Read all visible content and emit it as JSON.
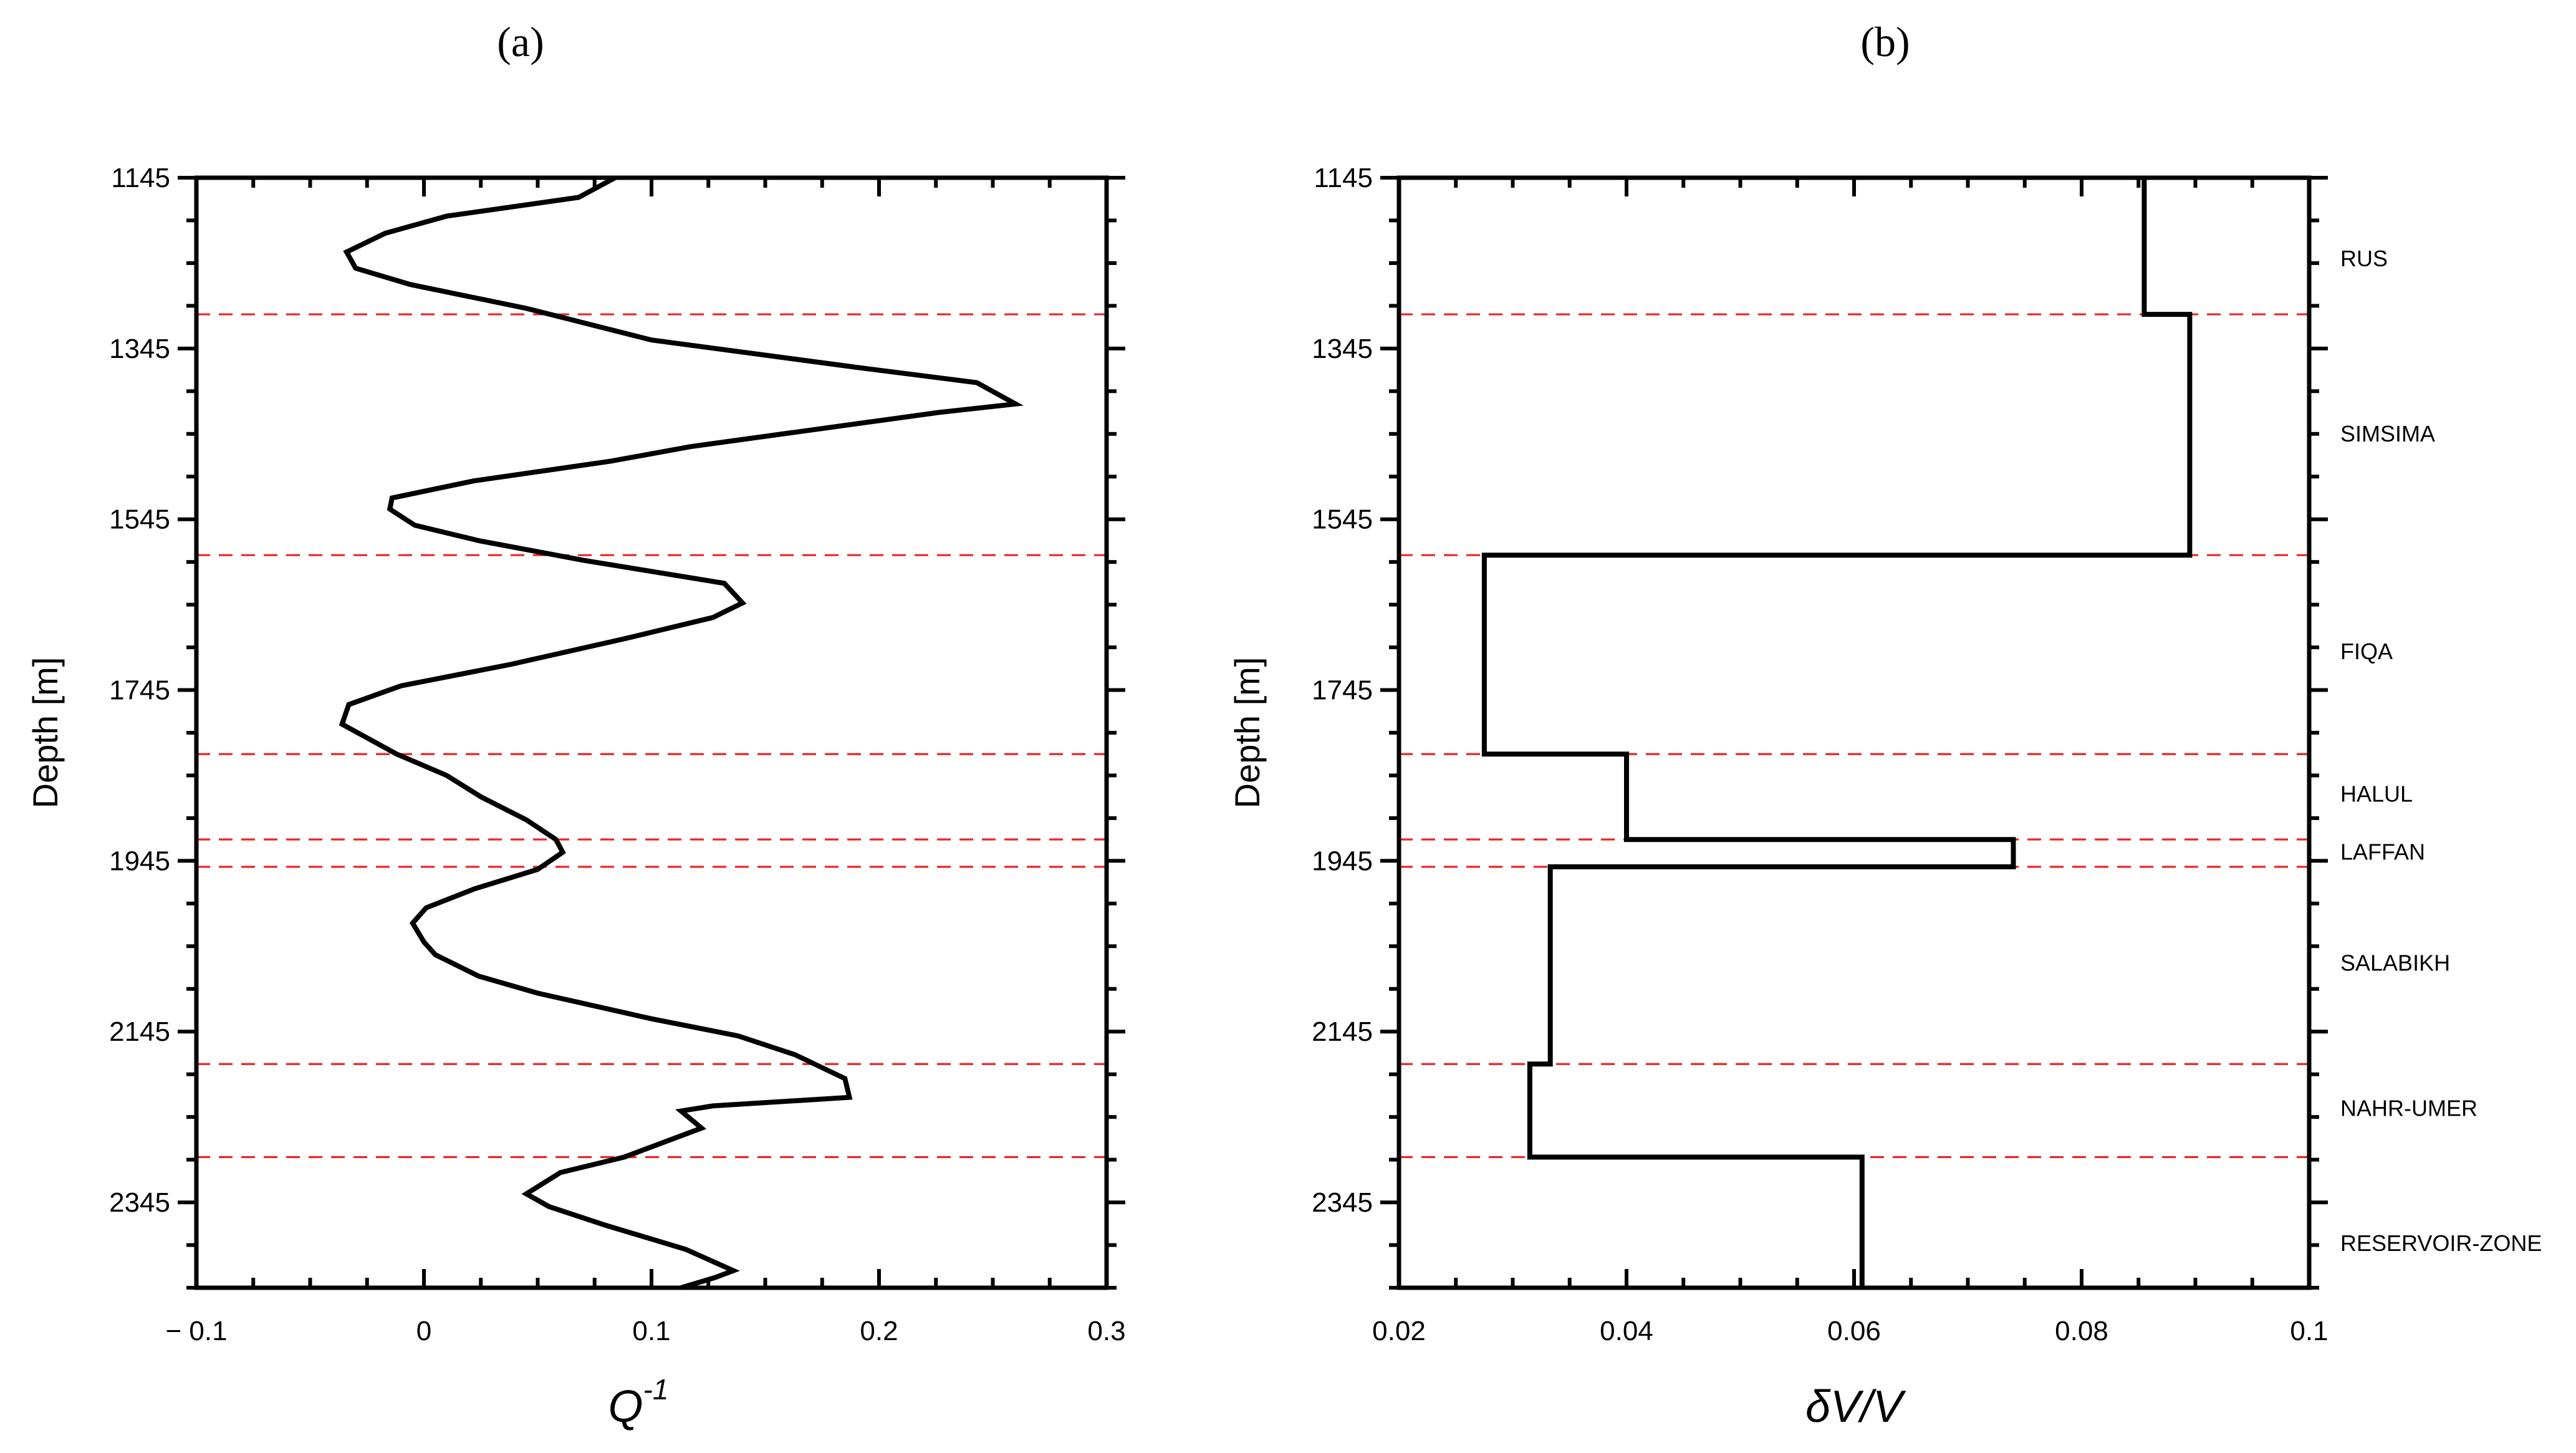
{
  "chart_data": [
    {
      "panel": "(a)",
      "type": "line",
      "xlabel": "Q",
      "xlabel_sup": "-1",
      "ylabel": "Depth [m]",
      "xlim": [
        -0.1,
        0.3
      ],
      "ylim": [
        1145,
        2445
      ],
      "y_inverted": true,
      "xticks": [
        -0.1,
        0,
        0.1,
        0.2,
        0.3
      ],
      "xtick_labels": [
        "− 0.1",
        "0",
        "0.1",
        "0.2",
        "0.3"
      ],
      "yticks": [
        1145,
        1345,
        1545,
        1745,
        1945,
        2145,
        2345
      ],
      "ytick_labels": [
        "1145",
        "1345",
        "1545",
        "1745",
        "1945",
        "2145",
        "2345"
      ],
      "boundaries": [
        1305,
        1587,
        1820,
        1920,
        1952,
        2183,
        2292
      ],
      "series": [
        {
          "name": "Q^-1",
          "points": [
            [
              0.084,
              1145
            ],
            [
              0.068,
              1168
            ],
            [
              0.01,
              1190
            ],
            [
              -0.017,
              1210
            ],
            [
              -0.034,
              1232
            ],
            [
              -0.03,
              1251
            ],
            [
              -0.006,
              1270
            ],
            [
              0.045,
              1298
            ],
            [
              0.1,
              1335
            ],
            [
              0.19,
              1367
            ],
            [
              0.243,
              1385
            ],
            [
              0.26,
              1410
            ],
            [
              0.226,
              1420
            ],
            [
              0.117,
              1460
            ],
            [
              0.082,
              1477
            ],
            [
              0.022,
              1500
            ],
            [
              -0.014,
              1520
            ],
            [
              -0.015,
              1533
            ],
            [
              -0.004,
              1552
            ],
            [
              0.024,
              1570
            ],
            [
              0.07,
              1593
            ],
            [
              0.132,
              1620
            ],
            [
              0.14,
              1643
            ],
            [
              0.127,
              1660
            ],
            [
              0.088,
              1685
            ],
            [
              0.038,
              1715
            ],
            [
              -0.01,
              1740
            ],
            [
              -0.033,
              1762
            ],
            [
              -0.036,
              1785
            ],
            [
              -0.012,
              1820
            ],
            [
              0.01,
              1845
            ],
            [
              0.025,
              1870
            ],
            [
              0.045,
              1897
            ],
            [
              0.058,
              1920
            ],
            [
              0.061,
              1935
            ],
            [
              0.05,
              1955
            ],
            [
              0.022,
              1978
            ],
            [
              0.001,
              2000
            ],
            [
              -0.005,
              2018
            ],
            [
              0.0,
              2040
            ],
            [
              0.005,
              2055
            ],
            [
              0.024,
              2080
            ],
            [
              0.05,
              2100
            ],
            [
              0.1,
              2130
            ],
            [
              0.138,
              2150
            ],
            [
              0.163,
              2172
            ],
            [
              0.185,
              2200
            ],
            [
              0.187,
              2222
            ],
            [
              0.127,
              2232
            ],
            [
              0.113,
              2238
            ],
            [
              0.122,
              2258
            ],
            [
              0.088,
              2292
            ],
            [
              0.06,
              2310
            ],
            [
              0.045,
              2335
            ],
            [
              0.055,
              2350
            ],
            [
              0.08,
              2372
            ],
            [
              0.115,
              2400
            ],
            [
              0.136,
              2425
            ],
            [
              0.128,
              2433
            ],
            [
              0.113,
              2445
            ]
          ]
        }
      ]
    },
    {
      "panel": "(b)",
      "type": "line",
      "xlabel": "δV/V",
      "ylabel": "Depth [m]",
      "xlim": [
        0.02,
        0.1
      ],
      "ylim": [
        1145,
        2445
      ],
      "y_inverted": true,
      "xticks": [
        0.02,
        0.04,
        0.06,
        0.08,
        0.1
      ],
      "xtick_labels": [
        "0.02",
        "0.04",
        "0.06",
        "0.08",
        "0.1"
      ],
      "yticks": [
        1145,
        1345,
        1545,
        1745,
        1945,
        2145,
        2345
      ],
      "ytick_labels": [
        "1145",
        "1345",
        "1545",
        "1745",
        "1945",
        "2145",
        "2345"
      ],
      "boundaries": [
        1305,
        1587,
        1820,
        1920,
        1952,
        2183,
        2292
      ],
      "zones": [
        {
          "name": "RUS",
          "top": 1145,
          "bottom": 1305,
          "dv_v": 0.0855,
          "label_depth": 1240
        },
        {
          "name": "SIMSIMA",
          "top": 1305,
          "bottom": 1587,
          "dv_v": 0.0895,
          "label_depth": 1445
        },
        {
          "name": "FIQA",
          "top": 1587,
          "bottom": 1820,
          "dv_v": 0.0275,
          "label_depth": 1700
        },
        {
          "name": "HALUL",
          "top": 1820,
          "bottom": 1920,
          "dv_v": 0.04,
          "label_depth": 1867
        },
        {
          "name": "LAFFAN",
          "top": 1920,
          "bottom": 1952,
          "dv_v": 0.074,
          "label_depth": 1935
        },
        {
          "name": "SALABIKH",
          "top": 1952,
          "bottom": 2183,
          "dv_v": 0.0333,
          "label_depth": 2065
        },
        {
          "name": "NAHR-UMER",
          "top": 2183,
          "bottom": 2292,
          "dv_v": 0.0315,
          "label_depth": 2235
        },
        {
          "name": "RESERVOIR-ZONE",
          "top": 2292,
          "bottom": 2445,
          "dv_v": 0.0607,
          "label_depth": 2393
        }
      ]
    }
  ]
}
